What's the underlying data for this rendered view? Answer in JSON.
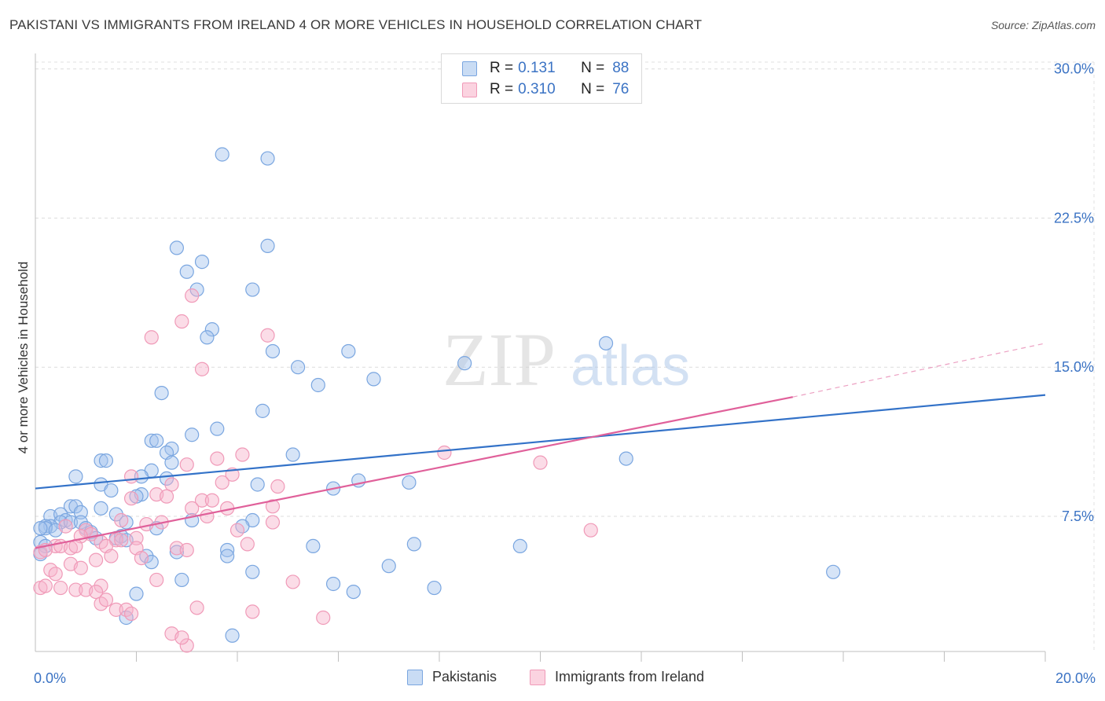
{
  "title": "PAKISTANI VS IMMIGRANTS FROM IRELAND 4 OR MORE VEHICLES IN HOUSEHOLD CORRELATION CHART",
  "source": "Source: ZipAtlas.com",
  "watermark": {
    "zip": "ZIP",
    "atlas": "atlas"
  },
  "legend": {
    "rows": [
      {
        "r_label": "R =",
        "r_value": "0.131",
        "n_label": "N =",
        "n_value": "88"
      },
      {
        "r_label": "R =",
        "r_value": "0.310",
        "n_label": "N =",
        "n_value": "76"
      }
    ]
  },
  "chart_data": {
    "type": "scatter",
    "title": "PAKISTANI VS IMMIGRANTS FROM IRELAND 4 OR MORE VEHICLES IN HOUSEHOLD CORRELATION CHART",
    "xlabel": "",
    "ylabel": "4 or more Vehicles in Household",
    "xlim": [
      0,
      20
    ],
    "ylim": [
      0.7,
      30.7
    ],
    "x_tick_labels": [
      "0.0%",
      "20.0%"
    ],
    "y_ticks": [
      7.5,
      15.0,
      22.5,
      30.0
    ],
    "y_tick_labels": [
      "7.5%",
      "15.0%",
      "22.5%",
      "30.0%"
    ],
    "grid": true,
    "legend_position": "top-center",
    "series": [
      {
        "name": "Pakistanis",
        "color": "#8db4e8",
        "line_color": "#3372c8",
        "R": 0.131,
        "N": 88,
        "trend": {
          "x": [
            0,
            20
          ],
          "y": [
            8.9,
            13.6
          ]
        },
        "points": [
          [
            3.7,
            25.7
          ],
          [
            4.6,
            25.5
          ],
          [
            2.8,
            21.0
          ],
          [
            4.6,
            21.1
          ],
          [
            3.3,
            20.3
          ],
          [
            3.0,
            19.8
          ],
          [
            3.2,
            18.9
          ],
          [
            4.3,
            18.9
          ],
          [
            3.5,
            16.9
          ],
          [
            3.4,
            16.5
          ],
          [
            11.3,
            16.2
          ],
          [
            4.7,
            15.8
          ],
          [
            6.2,
            15.8
          ],
          [
            5.2,
            15.0
          ],
          [
            8.5,
            15.2
          ],
          [
            6.7,
            14.4
          ],
          [
            5.6,
            14.1
          ],
          [
            2.5,
            13.7
          ],
          [
            4.5,
            12.8
          ],
          [
            3.6,
            11.9
          ],
          [
            3.1,
            11.6
          ],
          [
            2.3,
            11.3
          ],
          [
            2.4,
            11.3
          ],
          [
            2.7,
            10.9
          ],
          [
            2.6,
            10.7
          ],
          [
            5.1,
            10.6
          ],
          [
            1.3,
            10.3
          ],
          [
            1.4,
            10.3
          ],
          [
            2.7,
            10.2
          ],
          [
            11.7,
            10.4
          ],
          [
            2.3,
            9.8
          ],
          [
            0.8,
            9.5
          ],
          [
            2.1,
            9.5
          ],
          [
            2.6,
            9.4
          ],
          [
            1.3,
            9.1
          ],
          [
            4.4,
            9.1
          ],
          [
            6.4,
            9.3
          ],
          [
            7.4,
            9.2
          ],
          [
            1.5,
            8.8
          ],
          [
            2.1,
            8.6
          ],
          [
            2.0,
            8.5
          ],
          [
            5.9,
            8.9
          ],
          [
            0.7,
            8.0
          ],
          [
            0.8,
            8.0
          ],
          [
            1.3,
            7.9
          ],
          [
            0.9,
            7.7
          ],
          [
            1.6,
            7.6
          ],
          [
            0.3,
            7.5
          ],
          [
            0.5,
            7.6
          ],
          [
            3.1,
            7.3
          ],
          [
            0.6,
            7.3
          ],
          [
            0.5,
            7.2
          ],
          [
            0.3,
            7.0
          ],
          [
            0.2,
            7.0
          ],
          [
            0.2,
            6.9
          ],
          [
            0.4,
            6.8
          ],
          [
            0.1,
            6.9
          ],
          [
            0.7,
            7.2
          ],
          [
            0.9,
            7.2
          ],
          [
            1.8,
            7.2
          ],
          [
            4.3,
            7.3
          ],
          [
            1.0,
            6.9
          ],
          [
            1.1,
            6.7
          ],
          [
            2.4,
            6.9
          ],
          [
            4.1,
            7.0
          ],
          [
            1.2,
            6.4
          ],
          [
            1.6,
            6.4
          ],
          [
            1.7,
            6.5
          ],
          [
            1.8,
            6.3
          ],
          [
            0.1,
            6.2
          ],
          [
            0.2,
            6.0
          ],
          [
            5.5,
            6.0
          ],
          [
            7.5,
            6.1
          ],
          [
            9.6,
            6.0
          ],
          [
            3.8,
            5.8
          ],
          [
            2.8,
            5.7
          ],
          [
            0.1,
            5.6
          ],
          [
            3.8,
            5.5
          ],
          [
            2.2,
            5.5
          ],
          [
            2.3,
            5.2
          ],
          [
            7.0,
            5.0
          ],
          [
            4.3,
            4.7
          ],
          [
            15.8,
            4.7
          ],
          [
            2.9,
            4.3
          ],
          [
            5.9,
            4.1
          ],
          [
            6.3,
            3.7
          ],
          [
            7.9,
            3.9
          ],
          [
            2.0,
            3.6
          ],
          [
            1.8,
            2.4
          ],
          [
            3.9,
            1.5
          ]
        ]
      },
      {
        "name": "Immigrants from Ireland",
        "color": "#f4a8c0",
        "line_color": "#e0609a",
        "R": 0.31,
        "N": 76,
        "trend": {
          "x": [
            0,
            15
          ],
          "y": [
            5.9,
            13.5
          ]
        },
        "trend_extension": {
          "x": [
            15,
            20
          ],
          "y": [
            13.5,
            16.2
          ]
        },
        "points": [
          [
            3.1,
            18.6
          ],
          [
            2.9,
            17.3
          ],
          [
            4.6,
            16.6
          ],
          [
            2.3,
            16.5
          ],
          [
            3.3,
            14.9
          ],
          [
            8.1,
            10.7
          ],
          [
            3.6,
            10.4
          ],
          [
            4.1,
            10.6
          ],
          [
            3.0,
            10.1
          ],
          [
            10.0,
            10.2
          ],
          [
            1.9,
            9.5
          ],
          [
            3.9,
            9.6
          ],
          [
            3.7,
            9.2
          ],
          [
            2.7,
            9.1
          ],
          [
            4.8,
            9.0
          ],
          [
            2.4,
            8.6
          ],
          [
            2.6,
            8.5
          ],
          [
            1.9,
            8.4
          ],
          [
            3.3,
            8.3
          ],
          [
            3.5,
            8.3
          ],
          [
            4.7,
            8.0
          ],
          [
            3.8,
            7.9
          ],
          [
            3.1,
            7.9
          ],
          [
            3.4,
            7.5
          ],
          [
            1.7,
            7.3
          ],
          [
            2.5,
            7.2
          ],
          [
            4.7,
            7.2
          ],
          [
            2.2,
            7.1
          ],
          [
            0.6,
            7.0
          ],
          [
            1.0,
            6.8
          ],
          [
            11.0,
            6.8
          ],
          [
            1.1,
            6.6
          ],
          [
            0.9,
            6.5
          ],
          [
            2.0,
            6.4
          ],
          [
            1.6,
            6.3
          ],
          [
            1.7,
            6.3
          ],
          [
            1.3,
            6.2
          ],
          [
            4.2,
            6.1
          ],
          [
            0.4,
            6.0
          ],
          [
            0.5,
            6.0
          ],
          [
            0.7,
            5.9
          ],
          [
            0.8,
            6.0
          ],
          [
            1.4,
            6.0
          ],
          [
            2.0,
            5.9
          ],
          [
            2.8,
            5.9
          ],
          [
            3.0,
            5.8
          ],
          [
            0.1,
            5.7
          ],
          [
            0.2,
            5.8
          ],
          [
            1.5,
            5.5
          ],
          [
            2.1,
            5.4
          ],
          [
            1.2,
            5.3
          ],
          [
            0.7,
            5.1
          ],
          [
            0.9,
            4.9
          ],
          [
            0.3,
            4.8
          ],
          [
            0.4,
            4.6
          ],
          [
            2.4,
            4.3
          ],
          [
            5.1,
            4.2
          ],
          [
            1.3,
            4.0
          ],
          [
            0.1,
            3.9
          ],
          [
            0.8,
            3.8
          ],
          [
            1.0,
            3.8
          ],
          [
            1.2,
            3.7
          ],
          [
            0.5,
            3.9
          ],
          [
            1.3,
            3.1
          ],
          [
            1.6,
            2.8
          ],
          [
            1.8,
            2.8
          ],
          [
            3.2,
            2.9
          ],
          [
            4.3,
            2.7
          ],
          [
            1.9,
            2.6
          ],
          [
            5.7,
            2.4
          ],
          [
            2.7,
            1.6
          ],
          [
            3.0,
            1.0
          ],
          [
            0.2,
            4.0
          ],
          [
            1.4,
            3.3
          ],
          [
            2.9,
            1.4
          ],
          [
            4.0,
            6.8
          ]
        ]
      }
    ]
  },
  "bottom_legend": [
    {
      "label": "Pakistanis",
      "color": "#8db4e8"
    },
    {
      "label": "Immigrants from Ireland",
      "color": "#f4a8c0"
    }
  ]
}
